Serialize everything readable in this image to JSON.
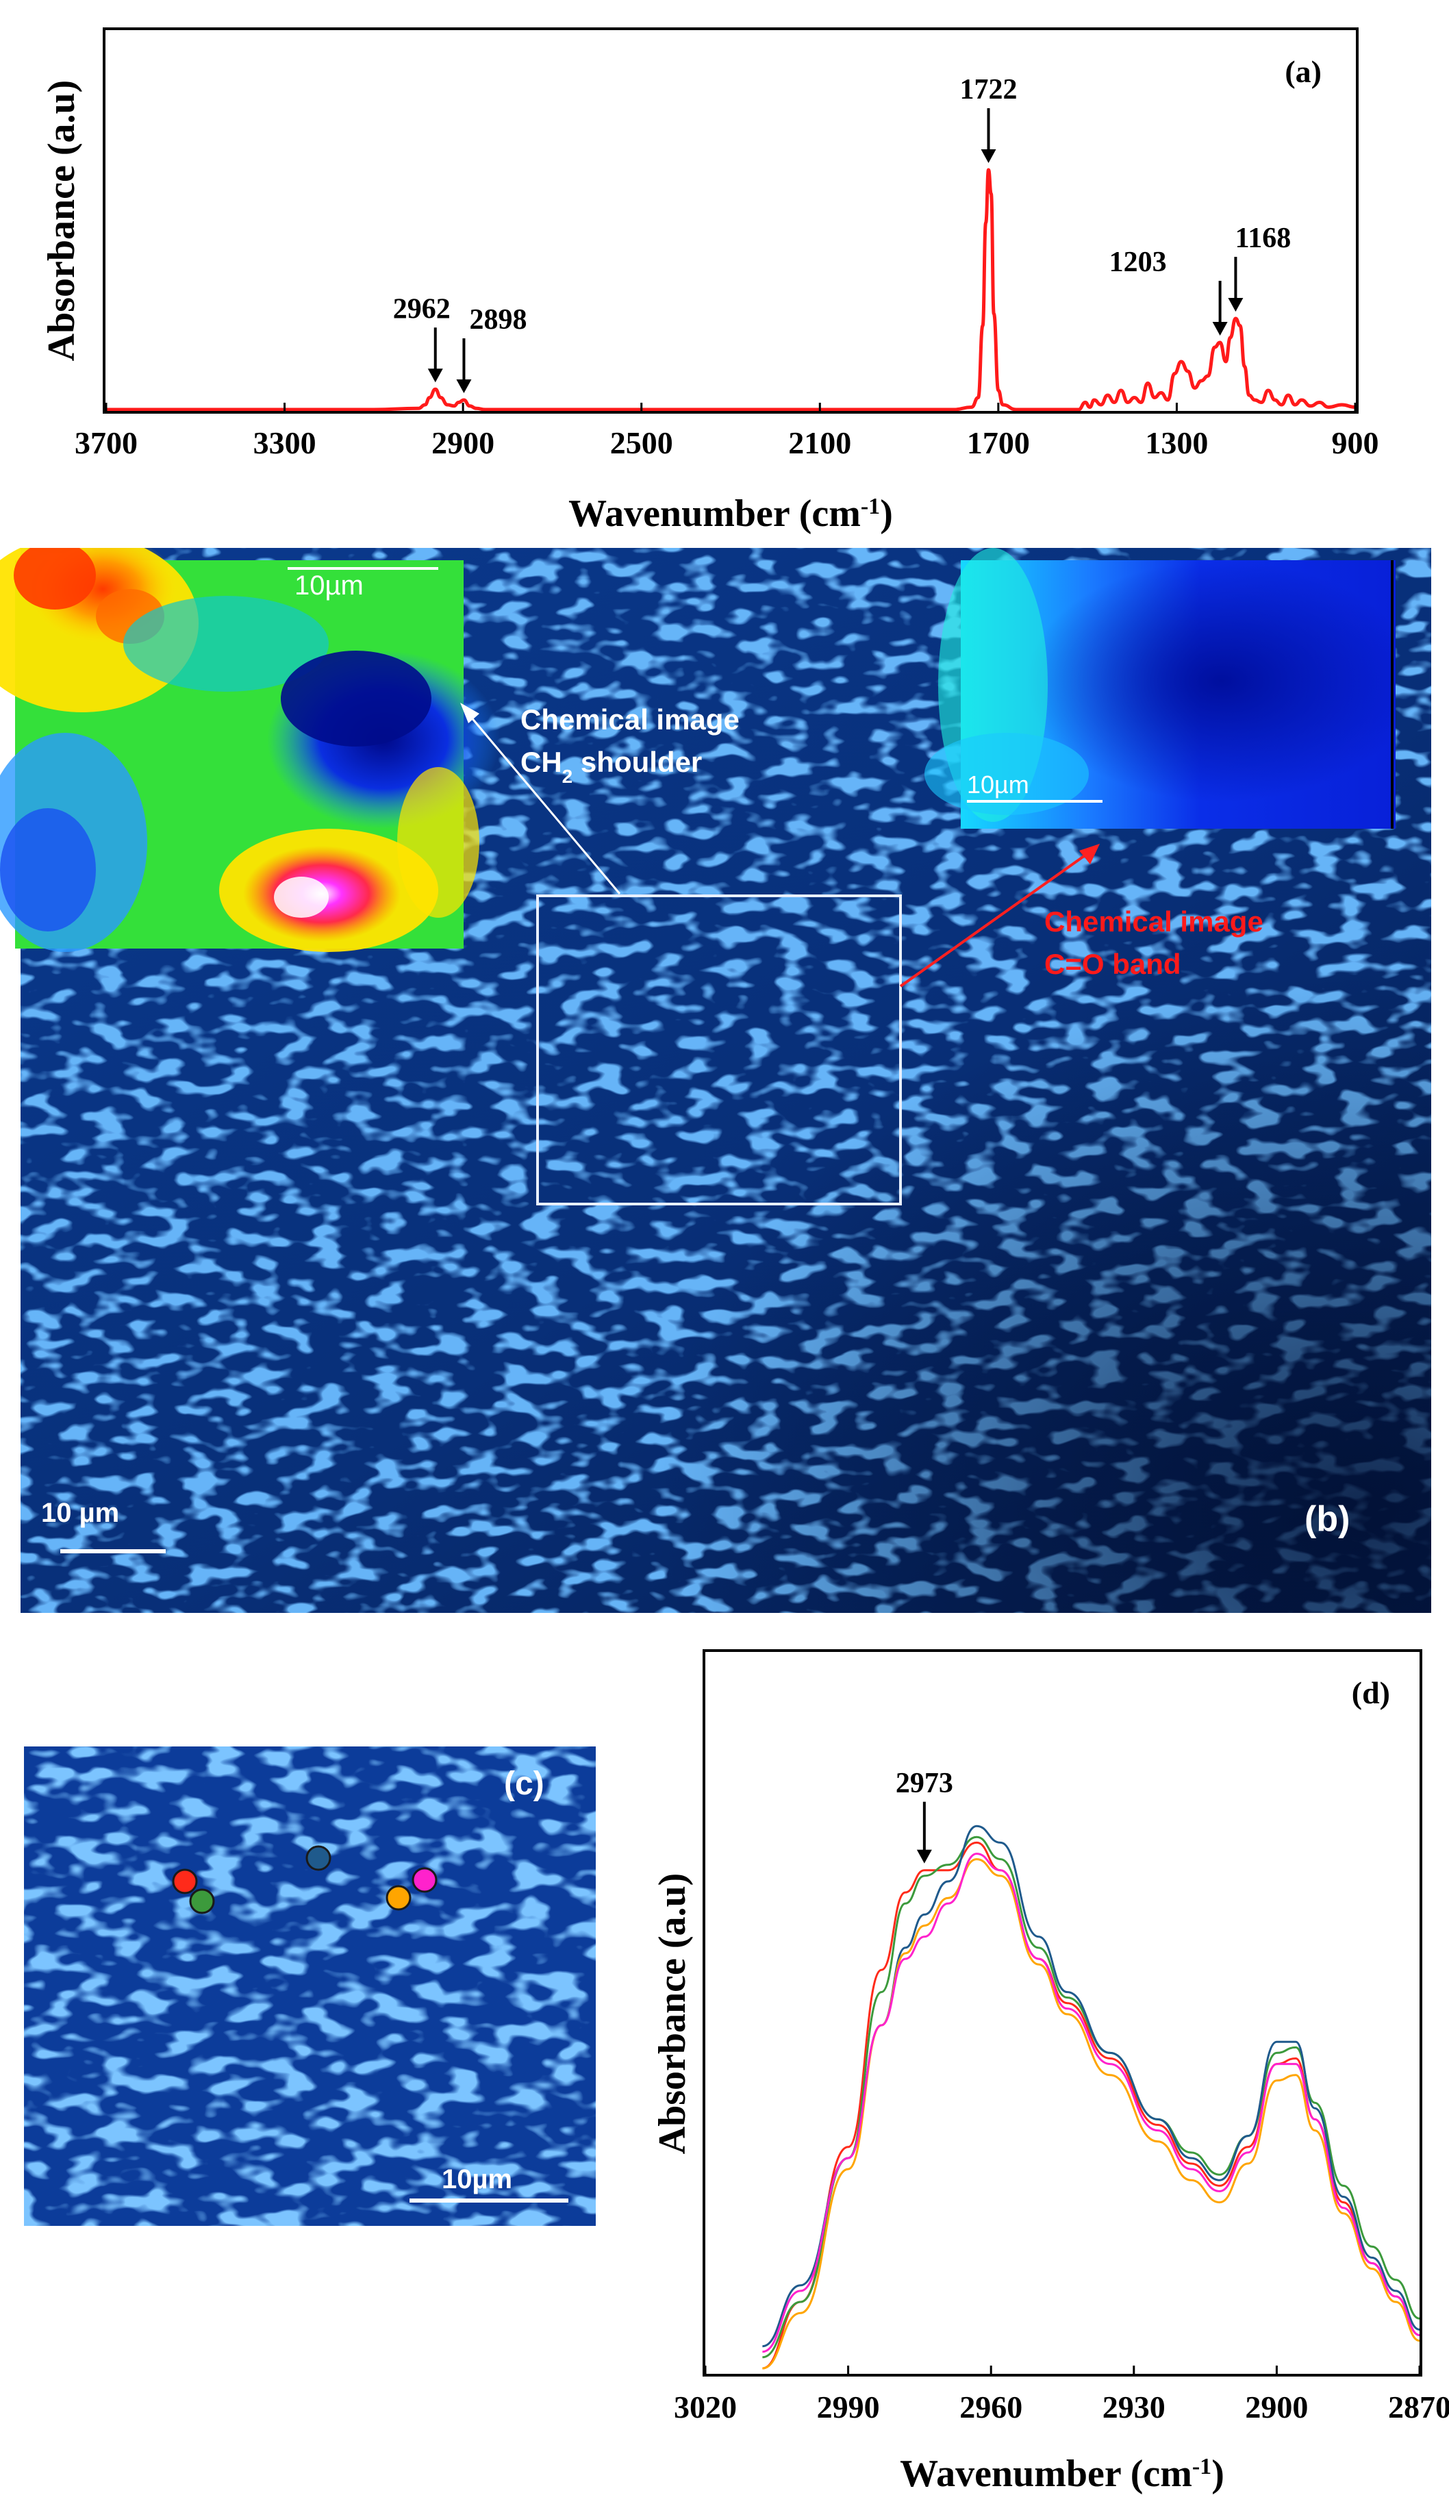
{
  "chart_data": [
    {
      "panel": "(a)",
      "type": "line",
      "xlabel": "Wavenumber (cm",
      "xlabel_sup": "-1",
      "xlabel_end": ")",
      "ylabel": "Absorbance (a.u)",
      "xlim": [
        3700,
        900
      ],
      "x_reversed": true,
      "xticks": [
        3700,
        3300,
        2900,
        2500,
        2100,
        1700,
        1300,
        900
      ],
      "annotations": [
        {
          "label": "2962",
          "x": 2962
        },
        {
          "label": "2898",
          "x": 2898
        },
        {
          "label": "1722",
          "x": 1722
        },
        {
          "label": "1203",
          "x": 1203
        },
        {
          "label": "1168",
          "x": 1168
        }
      ],
      "series": [
        {
          "color": "#ff1a1a",
          "x": [
            3700,
            3100,
            3000,
            2985,
            2975,
            2962,
            2950,
            2935,
            2920,
            2910,
            2898,
            2885,
            2870,
            2850,
            2700,
            2200,
            1800,
            1760,
            1745,
            1735,
            1728,
            1722,
            1716,
            1710,
            1700,
            1690,
            1660,
            1520,
            1505,
            1495,
            1485,
            1470,
            1455,
            1440,
            1425,
            1410,
            1395,
            1380,
            1365,
            1350,
            1335,
            1320,
            1305,
            1290,
            1275,
            1260,
            1245,
            1230,
            1215,
            1203,
            1190,
            1180,
            1168,
            1158,
            1148,
            1138,
            1125,
            1110,
            1095,
            1080,
            1065,
            1050,
            1035,
            1020,
            1000,
            980,
            960,
            930,
            900
          ],
          "y": [
            0.0,
            0.0,
            0.005,
            0.02,
            0.05,
            0.085,
            0.05,
            0.02,
            0.015,
            0.03,
            0.04,
            0.015,
            0.005,
            0.0,
            0.0,
            0.0,
            0.0,
            0.01,
            0.05,
            0.35,
            0.78,
            1.0,
            0.9,
            0.4,
            0.08,
            0.02,
            0.0,
            0.0,
            0.03,
            0.01,
            0.04,
            0.02,
            0.06,
            0.03,
            0.08,
            0.03,
            0.05,
            0.03,
            0.11,
            0.05,
            0.07,
            0.04,
            0.15,
            0.2,
            0.16,
            0.09,
            0.12,
            0.14,
            0.26,
            0.28,
            0.2,
            0.3,
            0.38,
            0.35,
            0.18,
            0.06,
            0.04,
            0.03,
            0.08,
            0.04,
            0.02,
            0.06,
            0.02,
            0.04,
            0.015,
            0.03,
            0.01,
            0.02,
            0.01
          ]
        }
      ]
    },
    {
      "panel": "(d)",
      "type": "line",
      "xlabel": "Wavenumber (cm",
      "xlabel_sup": "-1",
      "xlabel_end": ")",
      "ylabel": "Absorbance (a.u)",
      "xlim": [
        3020,
        2870
      ],
      "x_reversed": true,
      "xticks": [
        3020,
        2990,
        2960,
        2930,
        2900,
        2870
      ],
      "annotations": [
        {
          "label": "2973",
          "x": 2974
        }
      ],
      "series": [
        {
          "color": "#ff2a1a",
          "x": [
            3008,
            3000,
            2990,
            2983,
            2978,
            2974,
            2969,
            2963,
            2958,
            2950,
            2944,
            2935,
            2925,
            2918,
            2912,
            2906,
            2900,
            2896,
            2892,
            2886,
            2880,
            2875,
            2870
          ],
          "y": [
            0.0,
            0.12,
            0.4,
            0.72,
            0.86,
            0.9,
            0.9,
            0.95,
            0.9,
            0.74,
            0.66,
            0.56,
            0.44,
            0.37,
            0.33,
            0.4,
            0.55,
            0.56,
            0.45,
            0.3,
            0.19,
            0.13,
            0.06
          ]
        },
        {
          "color": "#3c9a3c",
          "x": [
            3008,
            3000,
            2990,
            2983,
            2978,
            2974,
            2969,
            2963,
            2958,
            2950,
            2944,
            2935,
            2925,
            2918,
            2912,
            2906,
            2900,
            2896,
            2892,
            2886,
            2880,
            2875,
            2870
          ],
          "y": [
            0.02,
            0.12,
            0.38,
            0.68,
            0.84,
            0.89,
            0.91,
            0.96,
            0.92,
            0.76,
            0.67,
            0.57,
            0.45,
            0.39,
            0.35,
            0.42,
            0.57,
            0.58,
            0.48,
            0.33,
            0.22,
            0.16,
            0.09
          ]
        },
        {
          "color": "#1f5a8c",
          "x": [
            3008,
            3000,
            2990,
            2983,
            2978,
            2974,
            2969,
            2963,
            2958,
            2950,
            2944,
            2935,
            2925,
            2918,
            2912,
            2906,
            2900,
            2896,
            2892,
            2886,
            2880,
            2875,
            2870
          ],
          "y": [
            0.04,
            0.15,
            0.38,
            0.62,
            0.76,
            0.82,
            0.88,
            0.98,
            0.95,
            0.78,
            0.68,
            0.57,
            0.45,
            0.38,
            0.34,
            0.42,
            0.59,
            0.59,
            0.47,
            0.31,
            0.2,
            0.14,
            0.07
          ]
        },
        {
          "color": "#ffa500",
          "x": [
            3008,
            3000,
            2990,
            2983,
            2978,
            2974,
            2969,
            2963,
            2958,
            2950,
            2944,
            2935,
            2925,
            2918,
            2912,
            2906,
            2900,
            2896,
            2892,
            2886,
            2880,
            2875,
            2870
          ],
          "y": [
            0.0,
            0.1,
            0.36,
            0.62,
            0.75,
            0.8,
            0.85,
            0.92,
            0.89,
            0.73,
            0.64,
            0.53,
            0.41,
            0.34,
            0.3,
            0.37,
            0.52,
            0.53,
            0.43,
            0.28,
            0.18,
            0.12,
            0.05
          ]
        },
        {
          "color": "#ff22cc",
          "x": [
            3008,
            3000,
            2990,
            2983,
            2978,
            2974,
            2969,
            2963,
            2958,
            2950,
            2944,
            2935,
            2925,
            2918,
            2912,
            2906,
            2900,
            2896,
            2892,
            2886,
            2880,
            2875,
            2870
          ],
          "y": [
            0.03,
            0.14,
            0.38,
            0.62,
            0.74,
            0.78,
            0.84,
            0.93,
            0.9,
            0.74,
            0.65,
            0.55,
            0.43,
            0.36,
            0.32,
            0.39,
            0.55,
            0.55,
            0.45,
            0.29,
            0.19,
            0.13,
            0.06
          ]
        }
      ]
    }
  ],
  "panel_b": {
    "label": "(b)",
    "scale_label": "10 µm",
    "inset_ch2_scale": "10µm",
    "inset_co_scale": "10µm",
    "ch2_caption_line1": "Chemical image",
    "ch2_caption_line2_pre": "CH",
    "ch2_caption_sub": "2",
    "ch2_caption_line2_post": " shoulder",
    "co_caption_line1": "Chemical image",
    "co_caption_line2": "C=O band",
    "color_caption_white": "#ffffff",
    "color_caption_red": "#ff1a1a"
  },
  "panel_c": {
    "label": "(c)",
    "scale_label": "10µm",
    "marker_colors": [
      "#ff2a1a",
      "#3c9a3c",
      "#1f5a8c",
      "#ffa500",
      "#ff22cc"
    ]
  }
}
